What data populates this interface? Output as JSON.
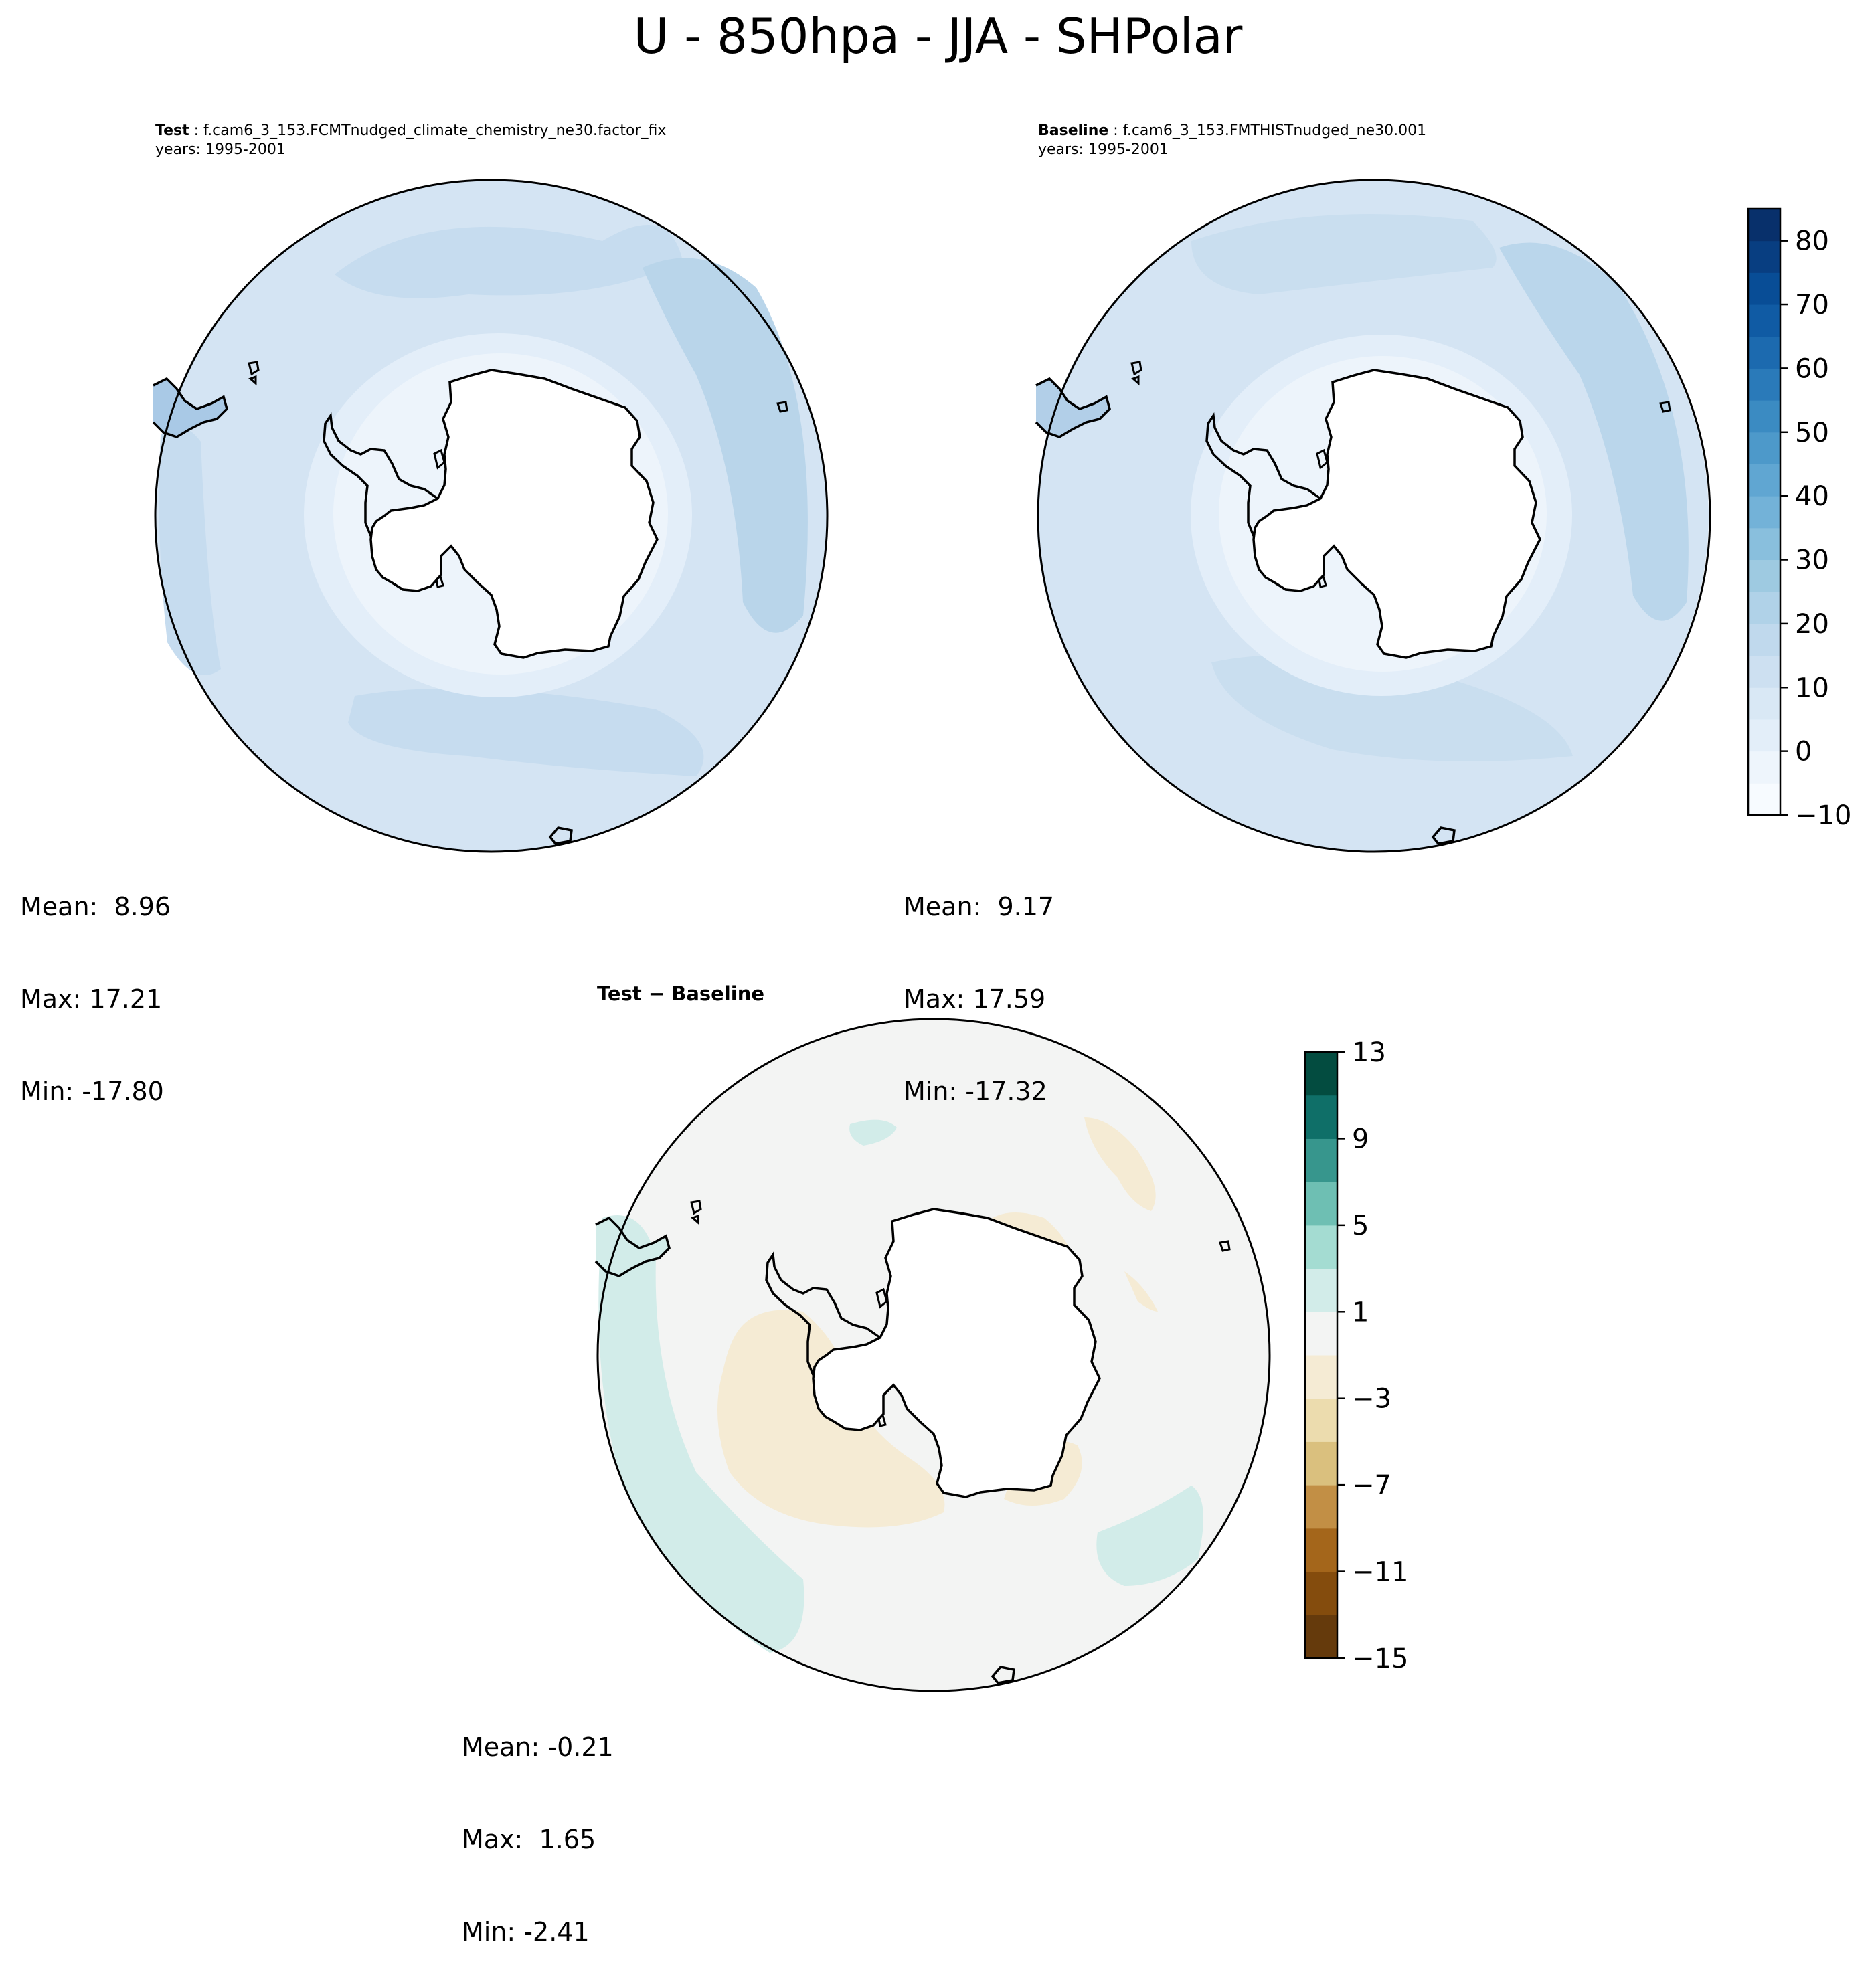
{
  "title": "U - 850hpa - JJA - SHPolar",
  "panels": {
    "test": {
      "label": "Test",
      "case": "f.cam6_3_153.FCMTnudged_climate_chemistry_ne30.factor_fix",
      "years": "years: 1995-2001",
      "mean": "Mean:  8.96",
      "max": "Max: 17.21",
      "min": "Min: -17.80"
    },
    "baseline": {
      "label": "Baseline",
      "case": "f.cam6_3_153.FMTHISTnudged_ne30.001",
      "years": "years: 1995-2001",
      "mean": "Mean:  9.17",
      "max": "Max: 17.59",
      "min": "Min: -17.32"
    },
    "diff": {
      "label": "Test − Baseline",
      "mean": "Mean: -0.21",
      "max": "Max:  1.65",
      "min": "Min: -2.41"
    }
  },
  "chart_data": [
    {
      "type": "heatmap",
      "name": "Test",
      "projection": "south polar stereographic",
      "stats": {
        "mean": 8.96,
        "max": 17.21,
        "min": -17.8
      },
      "colorbar": {
        "colormap": "Blues",
        "range": [
          -10,
          85
        ],
        "step": 5,
        "tick_labels": [
          "−10",
          "0",
          "10",
          "20",
          "30",
          "40",
          "50",
          "60",
          "70",
          "80"
        ],
        "colors": [
          "#f7fbff",
          "#eef5fc",
          "#e3eef9",
          "#d9e8f5",
          "#cde0f1",
          "#c0d9ed",
          "#b0d2e8",
          "#9ecae1",
          "#89bfdd",
          "#73b2d8",
          "#60a6d2",
          "#4d99ca",
          "#3b8bc2",
          "#2a7ab9",
          "#1c6aaf",
          "#105ba4",
          "#084d96",
          "#083e81",
          "#08306b"
        ]
      }
    },
    {
      "type": "heatmap",
      "name": "Baseline",
      "projection": "south polar stereographic",
      "stats": {
        "mean": 9.17,
        "max": 17.59,
        "min": -17.32
      },
      "colorbar": "shared with Test"
    },
    {
      "type": "heatmap",
      "name": "Test − Baseline",
      "projection": "south polar stereographic",
      "stats": {
        "mean": -0.21,
        "max": 1.65,
        "min": -2.41
      },
      "colorbar": {
        "colormap": "BrBG",
        "range": [
          -15,
          13
        ],
        "step": 2,
        "tick_labels": [
          "−15",
          "−11",
          "−7",
          "−3",
          "1",
          "5",
          "9",
          "13"
        ],
        "colors": [
          "#653a0c",
          "#844c0d",
          "#a4661b",
          "#c28f45",
          "#dac07e",
          "#ecdcae",
          "#f5ebd4",
          "#f3f4f3",
          "#d2ece9",
          "#a4dcd2",
          "#6ebfb3",
          "#37968d",
          "#0f6f68",
          "#034c40"
        ]
      }
    }
  ]
}
